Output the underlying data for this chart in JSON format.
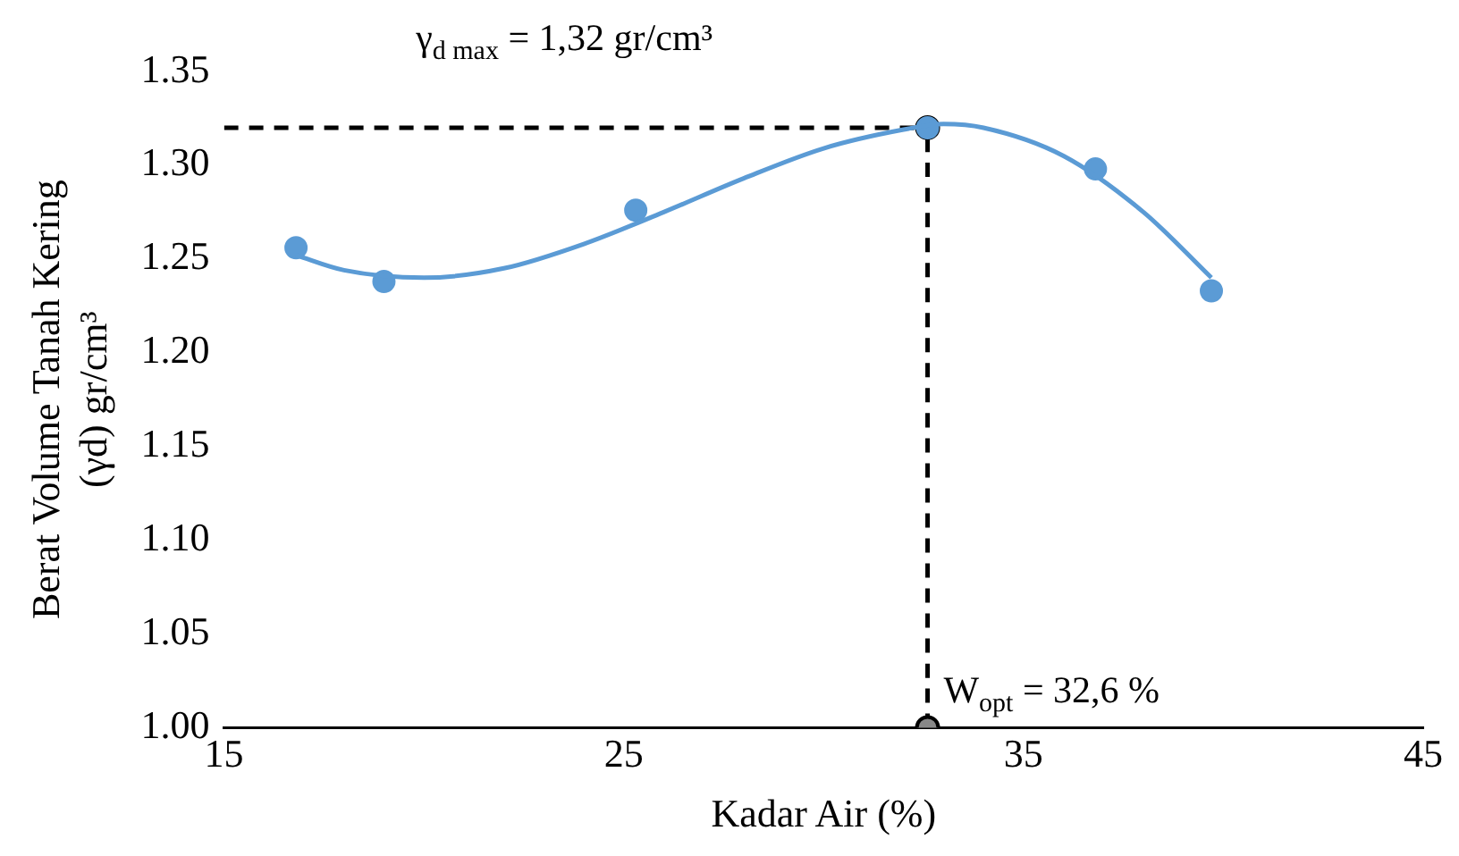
{
  "chart_data": {
    "type": "scatter",
    "xlabel": "Kadar Air (%)",
    "ylabel": "Berat Volume Tanah Kering\n(γd) gr/cm³",
    "xlim": [
      15,
      45
    ],
    "xticks": [
      15,
      25,
      35,
      45
    ],
    "ylim": [
      1.0,
      1.35
    ],
    "yticks": [
      {
        "value": 1.0,
        "label": "1.00"
      },
      {
        "value": 1.05,
        "label": "1.05"
      },
      {
        "value": 1.1,
        "label": "1.10"
      },
      {
        "value": 1.15,
        "label": "1.15"
      },
      {
        "value": 1.2,
        "label": "1.20"
      },
      {
        "value": 1.25,
        "label": "1.25"
      },
      {
        "value": 1.3,
        "label": "1.30"
      },
      {
        "value": 1.35,
        "label": "1.35"
      }
    ],
    "grid": false,
    "legend": false,
    "series": [
      {
        "type": "line",
        "color": "#5b9bd5",
        "line_style": "solid",
        "x": [
          16.8,
          18,
          20,
          22,
          24,
          26,
          28,
          30,
          32,
          33,
          34,
          36,
          38,
          39.7
        ],
        "values": [
          1.252,
          1.244,
          1.24,
          1.245,
          1.258,
          1.275,
          1.293,
          1.309,
          1.319,
          1.322,
          1.32,
          1.305,
          1.275,
          1.24
        ]
      },
      {
        "color": "#5b9bd5",
        "marker": "circle",
        "x": [
          16.8,
          19,
          25.3,
          32.6,
          36.8,
          39.7
        ],
        "values": [
          1.256,
          1.238,
          1.276,
          1.32,
          1.298,
          1.233
        ]
      },
      {
        "type": "line",
        "color": "#000000",
        "line_style": "dashed",
        "x": [
          15,
          32.6
        ],
        "values": [
          1.32,
          1.32
        ]
      },
      {
        "type": "line",
        "color": "#000000",
        "marker": "circle",
        "line_style": "dashed",
        "x": [
          32.6,
          32.6
        ],
        "values": [
          1.0,
          1.32
        ]
      }
    ],
    "annotations": [
      "γ$_{d max}$ = 1,32 gr/cm³",
      "W$_{opt}$ = 32,6 %"
    ]
  }
}
